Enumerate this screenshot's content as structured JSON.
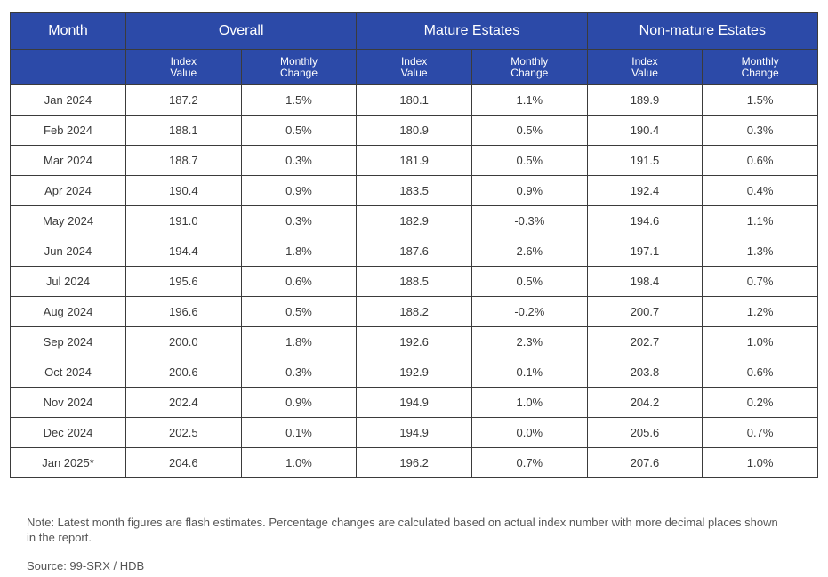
{
  "colors": {
    "header_bg": "#2c4aa8",
    "header_text": "#ffffff",
    "border": "#3b3b3b",
    "body_text": "#3a3a3a"
  },
  "chart_data": {
    "type": "table",
    "group_headers": [
      "Month",
      "Overall",
      "Mature Estates",
      "Non-mature Estates"
    ],
    "sub_headers": [
      [
        "Index",
        "Value"
      ],
      [
        "Monthly",
        "Change"
      ],
      [
        "Index",
        "Value"
      ],
      [
        "Monthly",
        "Change"
      ],
      [
        "Index",
        "Value"
      ],
      [
        "Monthly",
        "Change"
      ]
    ],
    "rows": [
      [
        "Jan 2024",
        "187.2",
        "1.5%",
        "180.1",
        "1.1%",
        "189.9",
        "1.5%"
      ],
      [
        "Feb 2024",
        "188.1",
        "0.5%",
        "180.9",
        "0.5%",
        "190.4",
        "0.3%"
      ],
      [
        "Mar 2024",
        "188.7",
        "0.3%",
        "181.9",
        "0.5%",
        "191.5",
        "0.6%"
      ],
      [
        "Apr 2024",
        "190.4",
        "0.9%",
        "183.5",
        "0.9%",
        "192.4",
        "0.4%"
      ],
      [
        "May 2024",
        "191.0",
        "0.3%",
        "182.9",
        "-0.3%",
        "194.6",
        "1.1%"
      ],
      [
        "Jun 2024",
        "194.4",
        "1.8%",
        "187.6",
        "2.6%",
        "197.1",
        "1.3%"
      ],
      [
        "Jul 2024",
        "195.6",
        "0.6%",
        "188.5",
        "0.5%",
        "198.4",
        "0.7%"
      ],
      [
        "Aug 2024",
        "196.6",
        "0.5%",
        "188.2",
        "-0.2%",
        "200.7",
        "1.2%"
      ],
      [
        "Sep 2024",
        "200.0",
        "1.8%",
        "192.6",
        "2.3%",
        "202.7",
        "1.0%"
      ],
      [
        "Oct 2024",
        "200.6",
        "0.3%",
        "192.9",
        "0.1%",
        "203.8",
        "0.6%"
      ],
      [
        "Nov 2024",
        "202.4",
        "0.9%",
        "194.9",
        "1.0%",
        "204.2",
        "0.2%"
      ],
      [
        "Dec 2024",
        "202.5",
        "0.1%",
        "194.9",
        "0.0%",
        "205.6",
        "0.7%"
      ],
      [
        "Jan 2025*",
        "204.6",
        "1.0%",
        "196.2",
        "0.7%",
        "207.6",
        "1.0%"
      ]
    ]
  },
  "footer": {
    "note": "Note: Latest month figures are flash estimates. Percentage changes are calculated based on actual index number with more decimal places shown in the report.",
    "source": "Source: 99-SRX / HDB"
  }
}
